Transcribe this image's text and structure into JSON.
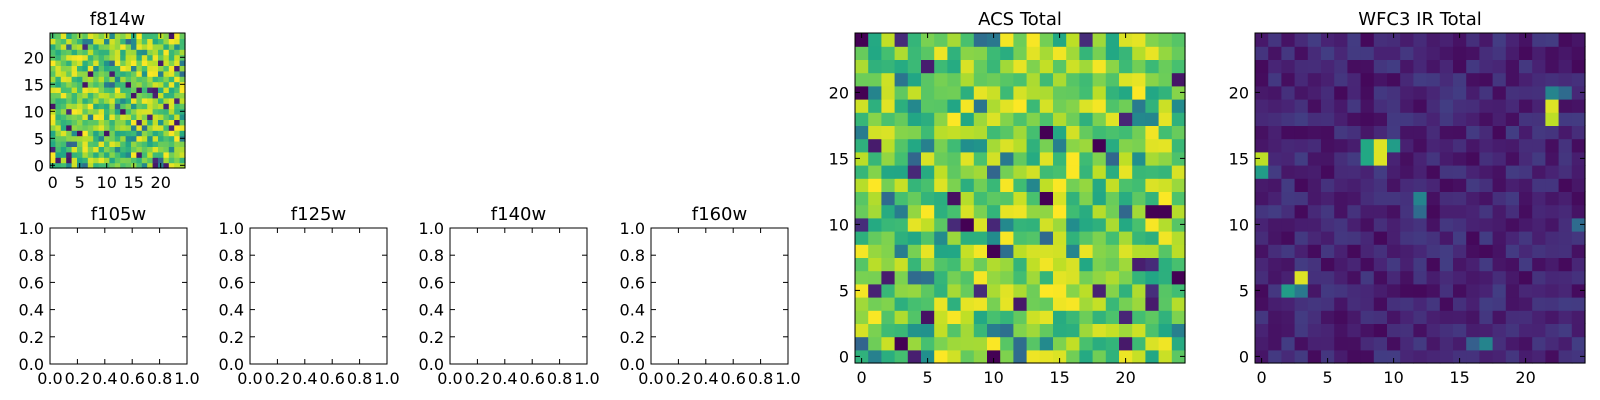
{
  "chart_data": [
    {
      "type": "heatmap",
      "title": "f814w",
      "colormap": "viridis",
      "grid": false,
      "xlim": [
        -0.5,
        24.5
      ],
      "ylim": [
        -0.5,
        24.5
      ],
      "xticks": [
        0,
        5,
        10,
        15,
        20
      ],
      "yticks": [
        0,
        5,
        10,
        15,
        20
      ],
      "seed": 11,
      "cells": "25x25 bright noise field (mostly green–yellow), values 0–1"
    },
    {
      "type": "heatmap",
      "title": "f105w",
      "empty": true,
      "xlim": [
        0,
        1
      ],
      "ylim": [
        0,
        1
      ],
      "xticks": [
        "0.0",
        "0.2",
        "0.4",
        "0.6",
        "0.8",
        "1.0"
      ],
      "yticks": [
        "0.0",
        "0.2",
        "0.4",
        "0.6",
        "0.8",
        "1.0"
      ]
    },
    {
      "type": "heatmap",
      "title": "f125w",
      "empty": true,
      "xlim": [
        0,
        1
      ],
      "ylim": [
        0,
        1
      ],
      "xticks": [
        "0.0",
        "0.2",
        "0.4",
        "0.6",
        "0.8",
        "1.0"
      ],
      "yticks": [
        "0.0",
        "0.2",
        "0.4",
        "0.6",
        "0.8",
        "1.0"
      ]
    },
    {
      "type": "heatmap",
      "title": "f140w",
      "empty": true,
      "xlim": [
        0,
        1
      ],
      "ylim": [
        0,
        1
      ],
      "xticks": [
        "0.0",
        "0.2",
        "0.4",
        "0.6",
        "0.8",
        "1.0"
      ],
      "yticks": [
        "0.0",
        "0.2",
        "0.4",
        "0.6",
        "0.8",
        "1.0"
      ]
    },
    {
      "type": "heatmap",
      "title": "f160w",
      "empty": true,
      "xlim": [
        0,
        1
      ],
      "ylim": [
        0,
        1
      ],
      "xticks": [
        "0.0",
        "0.2",
        "0.4",
        "0.6",
        "0.8",
        "1.0"
      ],
      "yticks": [
        "0.0",
        "0.2",
        "0.4",
        "0.6",
        "0.8",
        "1.0"
      ]
    },
    {
      "type": "heatmap",
      "title": "ACS Total",
      "colormap": "viridis",
      "grid": false,
      "xlim": [
        -0.5,
        24.5
      ],
      "ylim": [
        -0.5,
        24.5
      ],
      "xticks": [
        0,
        5,
        10,
        15,
        20
      ],
      "yticks": [
        0,
        5,
        10,
        15,
        20
      ],
      "seed": 42,
      "cells": "25x25 bright noise field (green–yellow), values 0–1",
      "dark_cells": [
        [
          3,
          1
        ],
        [
          8,
          10
        ],
        [
          10,
          8
        ],
        [
          14,
          12
        ],
        [
          22,
          11
        ],
        [
          23,
          11
        ],
        [
          24,
          6
        ],
        [
          0,
          20
        ],
        [
          14,
          17
        ],
        [
          18,
          16
        ],
        [
          0,
          24
        ],
        [
          10,
          0
        ]
      ]
    },
    {
      "type": "heatmap",
      "title": "WFC3 IR Total",
      "colormap": "viridis",
      "grid": false,
      "xlim": [
        -0.5,
        24.5
      ],
      "ylim": [
        -0.5,
        24.5
      ],
      "xticks": [
        0,
        5,
        10,
        15,
        20
      ],
      "yticks": [
        0,
        5,
        10,
        15,
        20
      ],
      "seed": 7,
      "cells": "25x25 dark background field, values mostly low",
      "bright_cells": [
        {
          "x": 0,
          "y": 15,
          "v": 0.9
        },
        {
          "x": 0,
          "y": 14,
          "v": 0.55
        },
        {
          "x": 8,
          "y": 16,
          "v": 0.6
        },
        {
          "x": 8,
          "y": 15,
          "v": 0.6
        },
        {
          "x": 9,
          "y": 16,
          "v": 0.95
        },
        {
          "x": 9,
          "y": 15,
          "v": 0.95
        },
        {
          "x": 10,
          "y": 16,
          "v": 0.55
        },
        {
          "x": 22,
          "y": 19,
          "v": 0.95
        },
        {
          "x": 22,
          "y": 18,
          "v": 0.9
        },
        {
          "x": 22,
          "y": 20,
          "v": 0.45
        },
        {
          "x": 23,
          "y": 20,
          "v": 0.35
        },
        {
          "x": 12,
          "y": 12,
          "v": 0.45
        },
        {
          "x": 12,
          "y": 11,
          "v": 0.35
        },
        {
          "x": 3,
          "y": 6,
          "v": 0.95
        },
        {
          "x": 2,
          "y": 5,
          "v": 0.55
        },
        {
          "x": 3,
          "y": 5,
          "v": 0.4
        },
        {
          "x": 17,
          "y": 1,
          "v": 0.45
        },
        {
          "x": 16,
          "y": 1,
          "v": 0.3
        },
        {
          "x": 24,
          "y": 10,
          "v": 0.35
        }
      ]
    }
  ]
}
